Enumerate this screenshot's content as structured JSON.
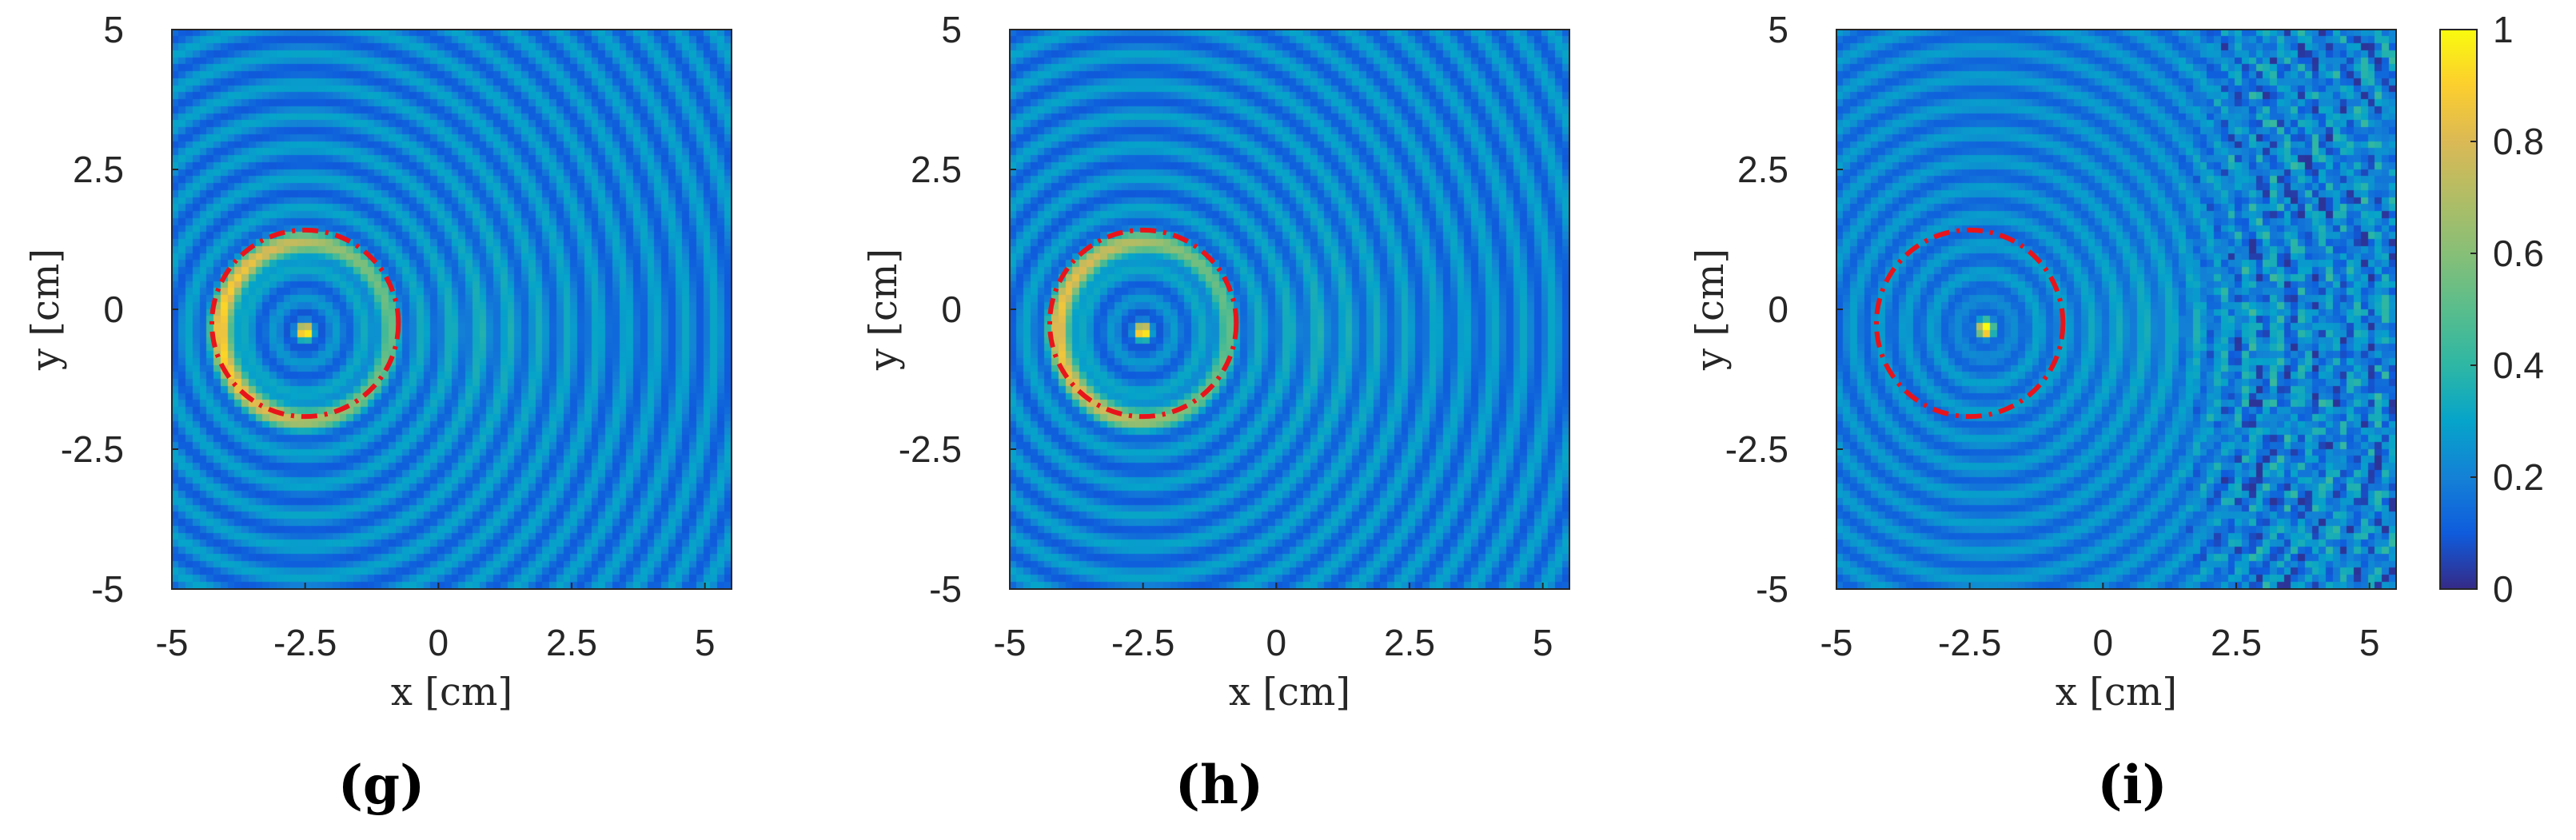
{
  "chart_data": [
    {
      "type": "heatmap",
      "panel_label": "(g)",
      "xlabel": "x [cm]",
      "ylabel": "y [cm]",
      "xlim": [
        -5,
        5.5
      ],
      "ylim": [
        -5,
        5
      ],
      "xticks": [
        -5,
        -2.5,
        0,
        2.5,
        5
      ],
      "xtick_labels": [
        "-5",
        "-2.5",
        "0",
        "2.5",
        "5"
      ],
      "yticks": [
        5,
        2.5,
        0,
        -2.5,
        -5
      ],
      "ytick_labels": [
        "5",
        "2.5",
        "0",
        "-2.5",
        "-5"
      ],
      "field": {
        "source": {
          "x": -2.5,
          "y": -0.4
        },
        "peak": 0.85,
        "bright_ring_radius": 1.55,
        "bright_ring_value": 0.6,
        "ring_spacing": 0.55,
        "outer_ripple_level": 0.3,
        "speckle": false
      },
      "overlay_circle": {
        "cx": -2.5,
        "cy": -0.25,
        "r": 1.75,
        "color": "#e8141b",
        "style": "dash-dot"
      }
    },
    {
      "type": "heatmap",
      "panel_label": "(h)",
      "xlabel": "x [cm]",
      "ylabel": "y [cm]",
      "xlim": [
        -5,
        5.5
      ],
      "ylim": [
        -5,
        5
      ],
      "xticks": [
        -5,
        -2.5,
        0,
        2.5,
        5
      ],
      "xtick_labels": [
        "-5",
        "-2.5",
        "0",
        "2.5",
        "5"
      ],
      "yticks": [
        5,
        2.5,
        0,
        -2.5,
        -5
      ],
      "ytick_labels": [
        "5",
        "2.5",
        "0",
        "-2.5",
        "-5"
      ],
      "field": {
        "source": {
          "x": -2.5,
          "y": -0.4
        },
        "peak": 0.85,
        "bright_ring_radius": 1.55,
        "bright_ring_value": 0.55,
        "ring_spacing": 0.55,
        "outer_ripple_level": 0.3,
        "speckle": false
      },
      "overlay_circle": {
        "cx": -2.5,
        "cy": -0.25,
        "r": 1.75,
        "color": "#e8141b",
        "style": "dash-dot"
      }
    },
    {
      "type": "heatmap",
      "panel_label": "(i)",
      "xlabel": "x [cm]",
      "ylabel": "y [cm]",
      "xlim": [
        -5,
        5.5
      ],
      "ylim": [
        -5,
        5
      ],
      "xticks": [
        -5,
        -2.5,
        0,
        2.5,
        5
      ],
      "xtick_labels": [
        "-5",
        "-2.5",
        "0",
        "2.5",
        "5"
      ],
      "yticks": [
        5,
        2.5,
        0,
        -2.5,
        -5
      ],
      "ytick_labels": [
        "5",
        "2.5",
        "0",
        "-2.5",
        "-5"
      ],
      "field": {
        "source": {
          "x": -2.2,
          "y": -0.35
        },
        "peak": 0.95,
        "bright_ring_radius": 0,
        "bright_ring_value": 0,
        "ring_spacing": 0.5,
        "outer_ripple_level": 0.25,
        "speckle": true
      },
      "overlay_circle": {
        "cx": -2.5,
        "cy": -0.25,
        "r": 1.75,
        "color": "#e8141b",
        "style": "dash-dot"
      }
    }
  ],
  "colorbar": {
    "colormap": "parula",
    "range": [
      0,
      1
    ],
    "ticks": [
      1,
      0.8,
      0.6,
      0.4,
      0.2,
      0
    ],
    "tick_labels": [
      "1",
      "0.8",
      "0.6",
      "0.4",
      "0.2",
      "0"
    ]
  }
}
